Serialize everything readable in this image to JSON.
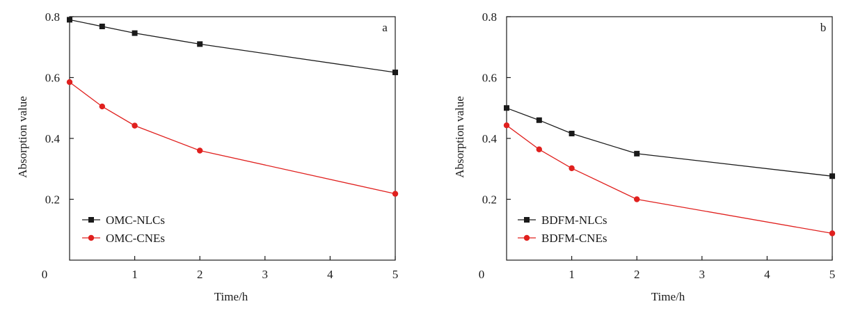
{
  "chart_data": [
    {
      "type": "line",
      "panel_label": "a",
      "xlabel": "Time/h",
      "ylabel": "Absorption value",
      "xlim": [
        0,
        5
      ],
      "ylim": [
        0,
        0.8
      ],
      "x_ticks": [
        "0",
        "1",
        "2",
        "3",
        "4",
        "5"
      ],
      "y_ticks": [
        "0",
        "0.2",
        "0.4",
        "0.6",
        "0.8"
      ],
      "legend_position": "lower-left",
      "grid": false,
      "series": [
        {
          "name": "OMC-NLCs",
          "color": "#1a1a1a",
          "marker": "square",
          "x": [
            0,
            0.5,
            1,
            2,
            5
          ],
          "y": [
            0.79,
            0.768,
            0.746,
            0.71,
            0.617
          ]
        },
        {
          "name": "OMC-CNEs",
          "color": "#e0201e",
          "marker": "circle",
          "x": [
            0,
            0.5,
            1,
            2,
            5
          ],
          "y": [
            0.585,
            0.505,
            0.442,
            0.36,
            0.218
          ]
        }
      ]
    },
    {
      "type": "line",
      "panel_label": "b",
      "xlabel": "Time/h",
      "ylabel": "Absorption value",
      "xlim": [
        0,
        5
      ],
      "ylim": [
        0,
        0.8
      ],
      "x_ticks": [
        "0",
        "1",
        "2",
        "3",
        "4",
        "5"
      ],
      "y_ticks": [
        "0",
        "0.2",
        "0.4",
        "0.6",
        "0.8"
      ],
      "legend_position": "lower-left",
      "grid": false,
      "series": [
        {
          "name": "BDFM-NLCs",
          "color": "#1a1a1a",
          "marker": "square",
          "x": [
            0,
            0.5,
            1,
            2,
            5
          ],
          "y": [
            0.5,
            0.46,
            0.416,
            0.35,
            0.276
          ]
        },
        {
          "name": "BDFM-CNEs",
          "color": "#e0201e",
          "marker": "circle",
          "x": [
            0,
            0.5,
            1,
            2,
            5
          ],
          "y": [
            0.443,
            0.364,
            0.302,
            0.2,
            0.088
          ]
        }
      ]
    }
  ]
}
